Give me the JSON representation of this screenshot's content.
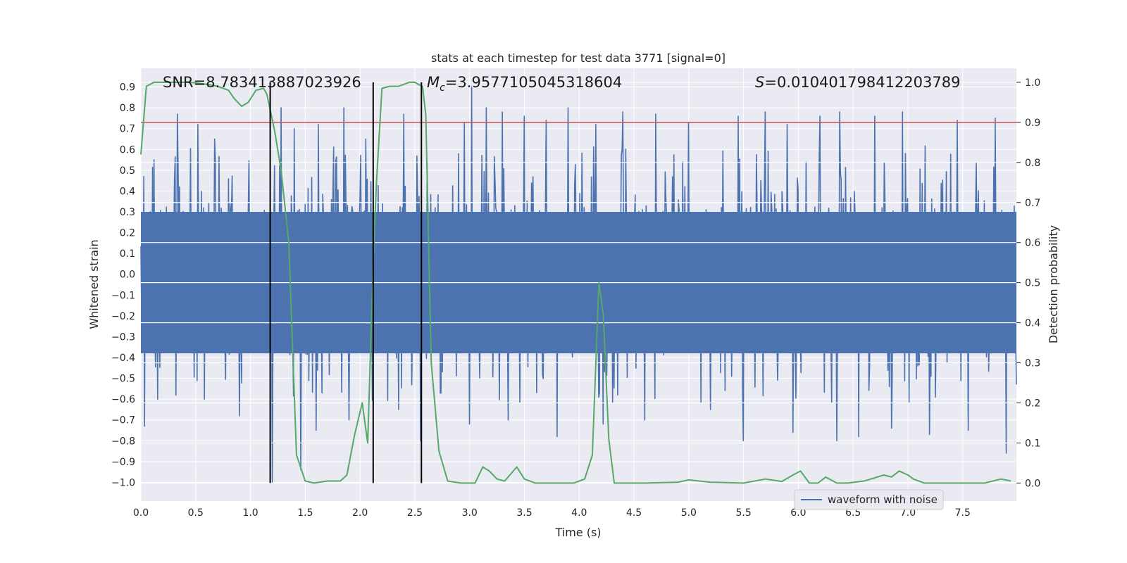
{
  "chart_data": {
    "type": "line",
    "title": "stats at each timestep for test data 3771 [signal=0]",
    "xlabel": "Time (s)",
    "ylabel": "Whitened strain",
    "y2label": "Detection probability",
    "xlim": [
      0,
      7.99
    ],
    "ylim": [
      -1.09,
      0.99
    ],
    "y2lim": [
      -0.045,
      1.035
    ],
    "x_ticks": [
      "0.0",
      "0.5",
      "1.0",
      "1.5",
      "2.0",
      "2.5",
      "3.0",
      "3.5",
      "4.0",
      "4.5",
      "5.0",
      "5.5",
      "6.0",
      "6.5",
      "7.0",
      "7.5"
    ],
    "y_ticks": [
      "0.9",
      "0.8",
      "0.7",
      "0.6",
      "0.5",
      "0.4",
      "0.3",
      "0.2",
      "0.1",
      "0.0",
      "−0.1",
      "−0.2",
      "−0.3",
      "−0.4",
      "−0.5",
      "−0.6",
      "−0.7",
      "−0.8",
      "−0.9",
      "−1.0"
    ],
    "y2_ticks": [
      "1.0",
      "0.9",
      "0.8",
      "0.7",
      "0.6",
      "0.5",
      "0.4",
      "0.3",
      "0.2",
      "0.1",
      "0.0"
    ],
    "annotations": {
      "snr": "SNR=8.783413887023926",
      "mc_symbol": "M",
      "mc_sub": "c",
      "mc_value": "=3.9577105045318604",
      "s_symbol": "S",
      "s_value": "=0.010401798412203789"
    },
    "legend": {
      "label": "waveform with noise",
      "placement": "lower-right"
    },
    "colors": {
      "plot_bg": "#eaeaf2",
      "grid": "#ffffff",
      "waveform": "#4c72b0",
      "probability": "#55a868",
      "threshold": "#c44e52",
      "markers": "#000000"
    },
    "threshold_prob": 0.9,
    "vertical_markers_x": [
      1.18,
      2.12,
      2.56
    ],
    "waveform": {
      "name": "waveform with noise",
      "x_start": 0.0,
      "x_end": 7.99,
      "samples": 1200,
      "core_amplitude": 0.43,
      "peaks_positive": [
        [
          0.03,
          0.45
        ],
        [
          0.12,
          0.55
        ],
        [
          0.33,
          0.77
        ],
        [
          0.52,
          0.72
        ],
        [
          0.67,
          0.65
        ],
        [
          0.9,
          0.6
        ],
        [
          1.2,
          0.79
        ],
        [
          1.28,
          0.8
        ],
        [
          1.4,
          0.7
        ],
        [
          1.62,
          0.72
        ],
        [
          1.85,
          0.8
        ],
        [
          2.05,
          0.65
        ],
        [
          2.4,
          0.77
        ],
        [
          2.55,
          0.8
        ],
        [
          2.95,
          0.73
        ],
        [
          3.02,
          0.9
        ],
        [
          3.15,
          0.8
        ],
        [
          3.3,
          0.78
        ],
        [
          3.5,
          0.76
        ],
        [
          3.7,
          0.74
        ],
        [
          3.9,
          0.8
        ],
        [
          4.15,
          0.72
        ],
        [
          4.4,
          0.78
        ],
        [
          4.7,
          0.77
        ],
        [
          5.0,
          0.73
        ],
        [
          5.2,
          0.72
        ],
        [
          5.45,
          0.76
        ],
        [
          5.7,
          0.78
        ],
        [
          5.9,
          0.72
        ],
        [
          6.2,
          0.76
        ],
        [
          6.38,
          0.78
        ],
        [
          6.7,
          0.76
        ],
        [
          6.95,
          0.78
        ],
        [
          7.2,
          0.72
        ],
        [
          7.45,
          0.74
        ],
        [
          7.8,
          0.75
        ]
      ],
      "peaks_negative": [
        [
          0.03,
          -0.73
        ],
        [
          0.15,
          -0.6
        ],
        [
          0.32,
          -0.58
        ],
        [
          0.58,
          -0.6
        ],
        [
          0.9,
          -0.68
        ],
        [
          1.2,
          -1.0
        ],
        [
          1.46,
          -0.94
        ],
        [
          1.6,
          -0.75
        ],
        [
          1.9,
          -0.7
        ],
        [
          2.35,
          -0.65
        ],
        [
          2.55,
          -0.8
        ],
        [
          3.0,
          -0.72
        ],
        [
          3.35,
          -0.7
        ],
        [
          3.8,
          -0.78
        ],
        [
          4.22,
          -0.72
        ],
        [
          4.6,
          -0.7
        ],
        [
          5.2,
          -0.65
        ],
        [
          5.5,
          -0.8
        ],
        [
          5.95,
          -0.76
        ],
        [
          6.35,
          -0.8
        ],
        [
          6.55,
          -0.78
        ],
        [
          6.85,
          -0.74
        ],
        [
          7.2,
          -0.77
        ],
        [
          7.55,
          -0.75
        ],
        [
          7.9,
          -0.86
        ]
      ]
    },
    "probability": {
      "x": [
        0.0,
        0.05,
        0.12,
        0.25,
        0.45,
        0.6,
        0.7,
        0.8,
        0.85,
        0.92,
        0.98,
        1.05,
        1.12,
        1.15,
        1.22,
        1.28,
        1.35,
        1.42,
        1.5,
        1.58,
        1.7,
        1.82,
        1.88,
        1.95,
        2.02,
        2.07,
        2.12,
        2.15,
        2.2,
        2.27,
        2.35,
        2.45,
        2.5,
        2.53,
        2.57,
        2.6,
        2.65,
        2.72,
        2.8,
        2.92,
        3.05,
        3.12,
        3.18,
        3.25,
        3.32,
        3.43,
        3.5,
        3.6,
        3.75,
        3.95,
        4.05,
        4.12,
        4.18,
        4.22,
        4.27,
        4.32,
        4.45,
        4.6,
        4.9,
        5.0,
        5.2,
        5.5,
        5.7,
        5.85,
        5.95,
        6.02,
        6.1,
        6.18,
        6.25,
        6.35,
        6.45,
        6.6,
        6.78,
        6.85,
        6.92,
        7.0,
        7.05,
        7.15,
        7.4,
        7.55,
        7.7,
        7.85,
        7.94
      ],
      "values": [
        0.82,
        0.99,
        1.0,
        1.0,
        1.0,
        0.995,
        0.99,
        0.98,
        0.96,
        0.94,
        0.95,
        0.98,
        0.985,
        0.97,
        0.88,
        0.78,
        0.6,
        0.07,
        0.005,
        0.0,
        0.005,
        0.005,
        0.02,
        0.12,
        0.2,
        0.1,
        0.55,
        0.75,
        0.985,
        0.99,
        0.99,
        1.0,
        1.0,
        0.995,
        0.99,
        0.92,
        0.3,
        0.08,
        0.005,
        0.0,
        0.0,
        0.04,
        0.03,
        0.01,
        0.005,
        0.04,
        0.01,
        0.0,
        0.0,
        0.0,
        0.01,
        0.07,
        0.5,
        0.42,
        0.11,
        0.0,
        0.0,
        0.0,
        0.002,
        0.008,
        0.002,
        0.0,
        0.01,
        0.004,
        0.02,
        0.03,
        0.0,
        0.0,
        0.015,
        0.0,
        0.0,
        0.005,
        0.02,
        0.015,
        0.03,
        0.02,
        0.01,
        0.0,
        0.0,
        0.0,
        0.0,
        0.01,
        0.005
      ]
    }
  }
}
